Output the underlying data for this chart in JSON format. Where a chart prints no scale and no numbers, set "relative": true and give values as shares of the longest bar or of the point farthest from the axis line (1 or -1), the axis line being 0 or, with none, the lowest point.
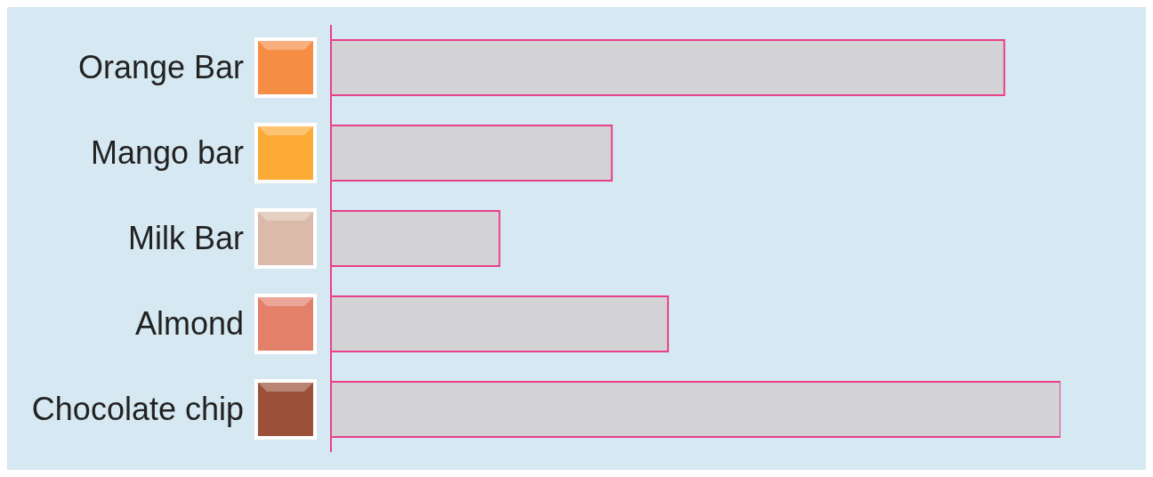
{
  "chart_data": {
    "type": "bar",
    "orientation": "horizontal",
    "relative": true,
    "categories": [
      "Orange Bar",
      "Mango bar",
      "Milk Bar",
      "Almond",
      "Chocolate chip"
    ],
    "values": [
      0.923,
      0.385,
      0.231,
      0.462,
      1
    ],
    "color": "#d3d3d5"
  }
}
